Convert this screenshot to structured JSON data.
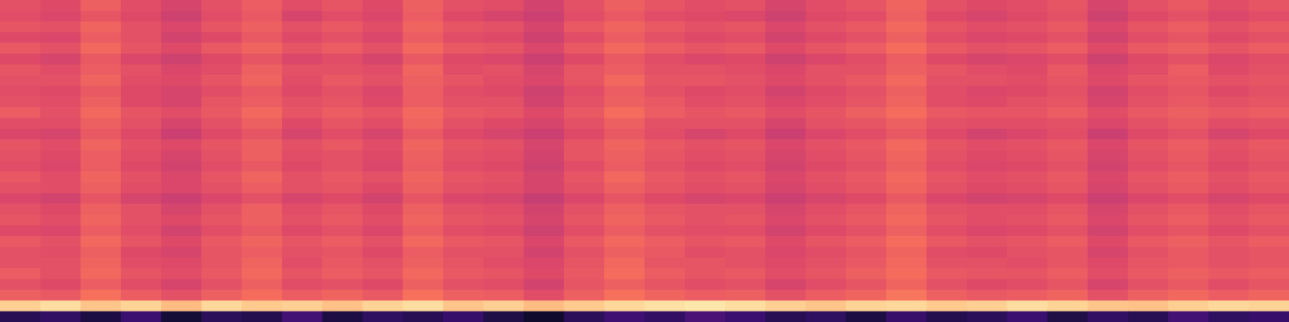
{
  "chart_data": {
    "type": "heatmap",
    "tick_labels": false,
    "color_range": [
      0,
      1
    ],
    "cells": [
      [
        0.62,
        0.6,
        0.66,
        0.61,
        0.58,
        0.62,
        0.65,
        0.61,
        0.63,
        0.6,
        0.66,
        0.62,
        0.61,
        0.57,
        0.62,
        0.66,
        0.63,
        0.61,
        0.62,
        0.58,
        0.61,
        0.63,
        0.67,
        0.62,
        0.6,
        0.61,
        0.63,
        0.58,
        0.62,
        0.64,
        0.61,
        0.63
      ],
      [
        0.61,
        0.59,
        0.63,
        0.6,
        0.56,
        0.61,
        0.64,
        0.58,
        0.61,
        0.59,
        0.65,
        0.6,
        0.58,
        0.55,
        0.61,
        0.64,
        0.61,
        0.6,
        0.59,
        0.56,
        0.6,
        0.61,
        0.66,
        0.6,
        0.58,
        0.6,
        0.62,
        0.56,
        0.6,
        0.62,
        0.59,
        0.61
      ],
      [
        0.63,
        0.62,
        0.67,
        0.62,
        0.59,
        0.63,
        0.66,
        0.62,
        0.64,
        0.61,
        0.67,
        0.63,
        0.62,
        0.58,
        0.64,
        0.67,
        0.64,
        0.62,
        0.63,
        0.59,
        0.62,
        0.64,
        0.68,
        0.63,
        0.61,
        0.62,
        0.64,
        0.59,
        0.63,
        0.65,
        0.62,
        0.64
      ],
      [
        0.6,
        0.59,
        0.65,
        0.62,
        0.57,
        0.6,
        0.64,
        0.6,
        0.62,
        0.59,
        0.65,
        0.61,
        0.6,
        0.56,
        0.61,
        0.65,
        0.62,
        0.6,
        0.61,
        0.57,
        0.6,
        0.62,
        0.66,
        0.61,
        0.59,
        0.6,
        0.62,
        0.57,
        0.61,
        0.63,
        0.6,
        0.62
      ],
      [
        0.64,
        0.62,
        0.68,
        0.63,
        0.6,
        0.64,
        0.67,
        0.63,
        0.65,
        0.62,
        0.68,
        0.64,
        0.63,
        0.59,
        0.64,
        0.68,
        0.65,
        0.63,
        0.64,
        0.6,
        0.63,
        0.65,
        0.69,
        0.64,
        0.62,
        0.63,
        0.65,
        0.6,
        0.64,
        0.66,
        0.63,
        0.65
      ],
      [
        0.6,
        0.58,
        0.64,
        0.59,
        0.56,
        0.6,
        0.63,
        0.59,
        0.61,
        0.58,
        0.64,
        0.6,
        0.59,
        0.55,
        0.6,
        0.64,
        0.61,
        0.59,
        0.6,
        0.56,
        0.59,
        0.61,
        0.65,
        0.6,
        0.58,
        0.59,
        0.61,
        0.56,
        0.6,
        0.62,
        0.59,
        0.61
      ],
      [
        0.63,
        0.61,
        0.65,
        0.62,
        0.59,
        0.61,
        0.66,
        0.62,
        0.62,
        0.61,
        0.67,
        0.61,
        0.62,
        0.58,
        0.63,
        0.65,
        0.62,
        0.62,
        0.61,
        0.59,
        0.62,
        0.62,
        0.66,
        0.63,
        0.61,
        0.6,
        0.64,
        0.59,
        0.61,
        0.65,
        0.6,
        0.62
      ],
      [
        0.62,
        0.62,
        0.67,
        0.61,
        0.6,
        0.63,
        0.67,
        0.61,
        0.64,
        0.62,
        0.66,
        0.63,
        0.61,
        0.59,
        0.63,
        0.68,
        0.63,
        0.63,
        0.62,
        0.6,
        0.62,
        0.64,
        0.68,
        0.62,
        0.62,
        0.61,
        0.63,
        0.6,
        0.63,
        0.64,
        0.62,
        0.63
      ],
      [
        0.61,
        0.6,
        0.64,
        0.6,
        0.58,
        0.61,
        0.64,
        0.6,
        0.62,
        0.59,
        0.65,
        0.61,
        0.6,
        0.56,
        0.61,
        0.65,
        0.62,
        0.6,
        0.61,
        0.57,
        0.6,
        0.62,
        0.66,
        0.61,
        0.59,
        0.6,
        0.62,
        0.57,
        0.61,
        0.63,
        0.6,
        0.62
      ],
      [
        0.62,
        0.61,
        0.66,
        0.6,
        0.58,
        0.63,
        0.65,
        0.62,
        0.63,
        0.6,
        0.65,
        0.62,
        0.62,
        0.57,
        0.62,
        0.66,
        0.64,
        0.61,
        0.62,
        0.59,
        0.61,
        0.63,
        0.67,
        0.61,
        0.6,
        0.62,
        0.63,
        0.58,
        0.62,
        0.64,
        0.62,
        0.63
      ],
      [
        0.65,
        0.62,
        0.68,
        0.63,
        0.61,
        0.64,
        0.68,
        0.63,
        0.65,
        0.63,
        0.68,
        0.64,
        0.63,
        0.6,
        0.64,
        0.69,
        0.65,
        0.63,
        0.64,
        0.61,
        0.63,
        0.66,
        0.69,
        0.64,
        0.63,
        0.63,
        0.65,
        0.61,
        0.64,
        0.66,
        0.64,
        0.65
      ],
      [
        0.61,
        0.61,
        0.66,
        0.62,
        0.58,
        0.62,
        0.66,
        0.6,
        0.63,
        0.61,
        0.67,
        0.62,
        0.6,
        0.58,
        0.62,
        0.66,
        0.62,
        0.62,
        0.62,
        0.58,
        0.62,
        0.63,
        0.66,
        0.62,
        0.61,
        0.61,
        0.62,
        0.59,
        0.62,
        0.64,
        0.61,
        0.62
      ],
      [
        0.59,
        0.58,
        0.64,
        0.6,
        0.55,
        0.6,
        0.63,
        0.58,
        0.61,
        0.58,
        0.64,
        0.6,
        0.58,
        0.55,
        0.6,
        0.64,
        0.61,
        0.58,
        0.6,
        0.55,
        0.59,
        0.61,
        0.64,
        0.6,
        0.57,
        0.59,
        0.61,
        0.55,
        0.6,
        0.62,
        0.58,
        0.6
      ],
      [
        0.63,
        0.61,
        0.67,
        0.62,
        0.6,
        0.63,
        0.66,
        0.62,
        0.64,
        0.61,
        0.67,
        0.63,
        0.62,
        0.58,
        0.63,
        0.67,
        0.64,
        0.62,
        0.63,
        0.59,
        0.62,
        0.64,
        0.68,
        0.63,
        0.61,
        0.62,
        0.64,
        0.59,
        0.63,
        0.65,
        0.62,
        0.64
      ],
      [
        0.62,
        0.6,
        0.65,
        0.61,
        0.58,
        0.62,
        0.66,
        0.61,
        0.62,
        0.6,
        0.66,
        0.62,
        0.61,
        0.57,
        0.63,
        0.66,
        0.63,
        0.61,
        0.62,
        0.58,
        0.61,
        0.63,
        0.67,
        0.62,
        0.6,
        0.61,
        0.63,
        0.58,
        0.62,
        0.64,
        0.61,
        0.63
      ],
      [
        0.61,
        0.59,
        0.65,
        0.6,
        0.57,
        0.61,
        0.64,
        0.6,
        0.62,
        0.59,
        0.65,
        0.61,
        0.6,
        0.56,
        0.61,
        0.65,
        0.62,
        0.6,
        0.61,
        0.57,
        0.6,
        0.62,
        0.66,
        0.61,
        0.59,
        0.6,
        0.62,
        0.57,
        0.61,
        0.63,
        0.6,
        0.62
      ],
      [
        0.64,
        0.61,
        0.67,
        0.62,
        0.59,
        0.63,
        0.67,
        0.62,
        0.64,
        0.62,
        0.67,
        0.63,
        0.62,
        0.58,
        0.63,
        0.68,
        0.64,
        0.62,
        0.63,
        0.59,
        0.62,
        0.64,
        0.68,
        0.63,
        0.61,
        0.62,
        0.64,
        0.59,
        0.63,
        0.65,
        0.62,
        0.64
      ],
      [
        0.62,
        0.61,
        0.66,
        0.61,
        0.59,
        0.62,
        0.65,
        0.62,
        0.63,
        0.6,
        0.66,
        0.62,
        0.61,
        0.58,
        0.62,
        0.66,
        0.63,
        0.61,
        0.62,
        0.58,
        0.61,
        0.63,
        0.67,
        0.62,
        0.6,
        0.61,
        0.63,
        0.58,
        0.62,
        0.64,
        0.61,
        0.63
      ],
      [
        0.59,
        0.57,
        0.63,
        0.58,
        0.55,
        0.59,
        0.62,
        0.58,
        0.6,
        0.57,
        0.63,
        0.59,
        0.58,
        0.54,
        0.59,
        0.63,
        0.6,
        0.58,
        0.59,
        0.55,
        0.58,
        0.6,
        0.64,
        0.59,
        0.57,
        0.58,
        0.6,
        0.55,
        0.59,
        0.61,
        0.58,
        0.6
      ],
      [
        0.62,
        0.6,
        0.66,
        0.62,
        0.58,
        0.62,
        0.66,
        0.61,
        0.63,
        0.6,
        0.66,
        0.62,
        0.61,
        0.57,
        0.62,
        0.66,
        0.63,
        0.62,
        0.62,
        0.58,
        0.61,
        0.63,
        0.67,
        0.62,
        0.61,
        0.61,
        0.63,
        0.58,
        0.62,
        0.64,
        0.61,
        0.63
      ],
      [
        0.63,
        0.61,
        0.67,
        0.62,
        0.6,
        0.63,
        0.66,
        0.62,
        0.64,
        0.61,
        0.67,
        0.63,
        0.62,
        0.58,
        0.63,
        0.67,
        0.64,
        0.62,
        0.63,
        0.59,
        0.62,
        0.64,
        0.68,
        0.63,
        0.61,
        0.62,
        0.64,
        0.59,
        0.63,
        0.65,
        0.62,
        0.64
      ],
      [
        0.6,
        0.59,
        0.65,
        0.61,
        0.57,
        0.61,
        0.64,
        0.6,
        0.62,
        0.59,
        0.65,
        0.61,
        0.6,
        0.56,
        0.61,
        0.65,
        0.62,
        0.61,
        0.61,
        0.57,
        0.6,
        0.62,
        0.66,
        0.61,
        0.59,
        0.6,
        0.62,
        0.57,
        0.61,
        0.63,
        0.6,
        0.62
      ],
      [
        0.64,
        0.62,
        0.68,
        0.63,
        0.6,
        0.64,
        0.67,
        0.63,
        0.65,
        0.62,
        0.68,
        0.64,
        0.63,
        0.59,
        0.64,
        0.68,
        0.65,
        0.63,
        0.64,
        0.6,
        0.63,
        0.65,
        0.69,
        0.64,
        0.62,
        0.63,
        0.65,
        0.6,
        0.64,
        0.66,
        0.63,
        0.65
      ],
      [
        0.62,
        0.61,
        0.66,
        0.6,
        0.58,
        0.63,
        0.65,
        0.62,
        0.63,
        0.6,
        0.65,
        0.62,
        0.62,
        0.57,
        0.62,
        0.66,
        0.64,
        0.61,
        0.62,
        0.59,
        0.61,
        0.63,
        0.67,
        0.61,
        0.6,
        0.62,
        0.63,
        0.58,
        0.62,
        0.64,
        0.62,
        0.63
      ],
      [
        0.62,
        0.62,
        0.67,
        0.61,
        0.6,
        0.63,
        0.67,
        0.61,
        0.64,
        0.62,
        0.66,
        0.63,
        0.61,
        0.59,
        0.63,
        0.68,
        0.63,
        0.63,
        0.62,
        0.6,
        0.62,
        0.64,
        0.68,
        0.62,
        0.62,
        0.61,
        0.63,
        0.6,
        0.63,
        0.64,
        0.62,
        0.63
      ],
      [
        0.65,
        0.62,
        0.68,
        0.63,
        0.61,
        0.64,
        0.68,
        0.63,
        0.65,
        0.63,
        0.68,
        0.64,
        0.63,
        0.6,
        0.64,
        0.69,
        0.65,
        0.63,
        0.64,
        0.61,
        0.63,
        0.66,
        0.69,
        0.64,
        0.63,
        0.63,
        0.65,
        0.61,
        0.64,
        0.66,
        0.64,
        0.65
      ],
      [
        0.62,
        0.6,
        0.65,
        0.61,
        0.58,
        0.62,
        0.66,
        0.61,
        0.62,
        0.6,
        0.66,
        0.62,
        0.61,
        0.57,
        0.63,
        0.66,
        0.63,
        0.61,
        0.62,
        0.58,
        0.61,
        0.63,
        0.67,
        0.62,
        0.6,
        0.61,
        0.63,
        0.58,
        0.62,
        0.64,
        0.61,
        0.63
      ],
      [
        0.66,
        0.64,
        0.7,
        0.65,
        0.62,
        0.66,
        0.69,
        0.65,
        0.67,
        0.64,
        0.7,
        0.66,
        0.65,
        0.61,
        0.66,
        0.7,
        0.67,
        0.65,
        0.66,
        0.62,
        0.65,
        0.67,
        0.71,
        0.66,
        0.64,
        0.65,
        0.67,
        0.62,
        0.66,
        0.68,
        0.65,
        0.67
      ],
      [
        0.9,
        0.93,
        0.88,
        0.91,
        0.86,
        0.92,
        0.89,
        0.9,
        0.87,
        0.91,
        0.93,
        0.88,
        0.9,
        0.86,
        0.89,
        0.92,
        0.94,
        0.95,
        0.93,
        0.9,
        0.88,
        0.91,
        0.92,
        0.89,
        0.9,
        0.93,
        0.91,
        0.88,
        0.87,
        0.9,
        0.92,
        0.91
      ],
      [
        0.15,
        0.18,
        0.12,
        0.2,
        0.1,
        0.16,
        0.14,
        0.22,
        0.12,
        0.17,
        0.15,
        0.19,
        0.13,
        0.08,
        0.16,
        0.21,
        0.18,
        0.24,
        0.2,
        0.15,
        0.17,
        0.12,
        0.19,
        0.14,
        0.16,
        0.2,
        0.13,
        0.18,
        0.15,
        0.22,
        0.17,
        0.19
      ]
    ]
  }
}
